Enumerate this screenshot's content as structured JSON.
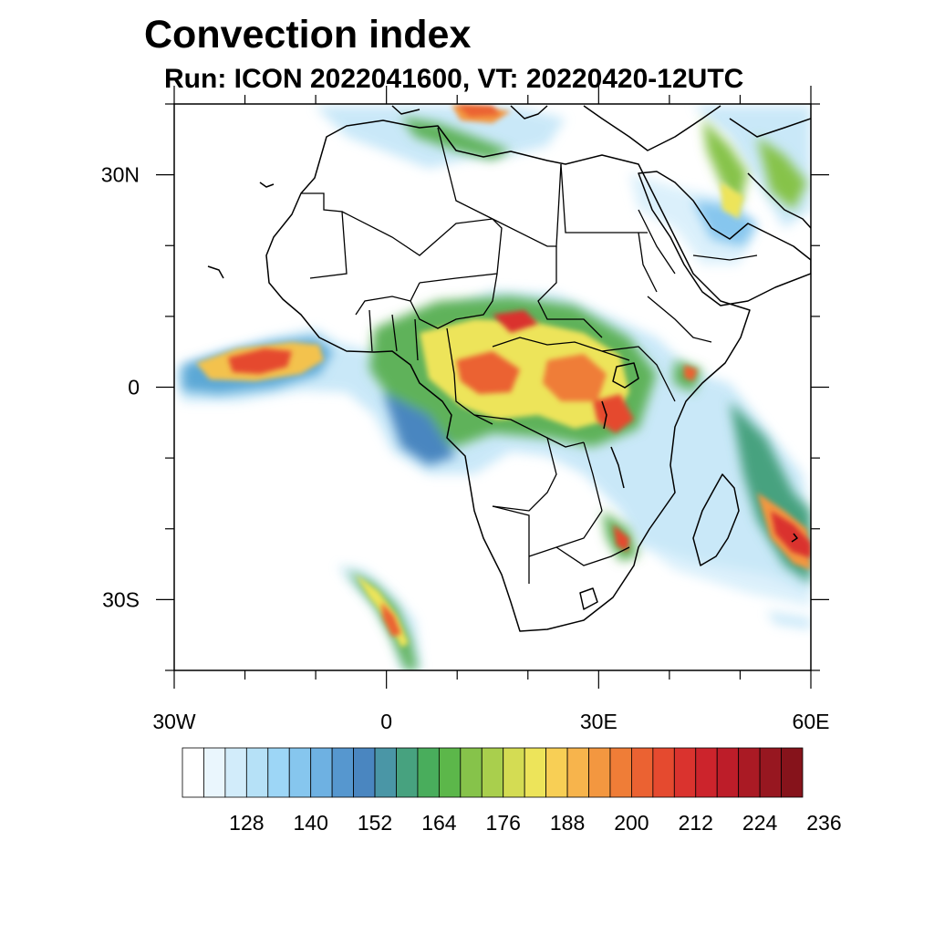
{
  "figure": {
    "title": "Convection index",
    "subtitle": "Run: ICON 2022041600,  VT: 20220420-12UTC"
  },
  "map": {
    "lon_range": [
      -30,
      60
    ],
    "lat_range": [
      -40,
      40
    ],
    "lat_ticks": [
      {
        "value": 30,
        "label": "30N"
      },
      {
        "value": 0,
        "label": "0"
      },
      {
        "value": -30,
        "label": "30S"
      }
    ],
    "lon_ticks": [
      {
        "value": -30,
        "label": "30W"
      },
      {
        "value": 0,
        "label": "0"
      },
      {
        "value": 30,
        "label": "30E"
      },
      {
        "value": 60,
        "label": "60E"
      }
    ],
    "minor_tick_step_deg": 10
  },
  "colorbar": {
    "labels": [
      "128",
      "140",
      "152",
      "164",
      "176",
      "188",
      "200",
      "212",
      "224",
      "236"
    ],
    "colors": [
      "#ffffff",
      "#eaf6fd",
      "#d2ecfa",
      "#b6e1f7",
      "#9dd6f6",
      "#86c6ee",
      "#6eb1e2",
      "#5697cf",
      "#4a86c0",
      "#4a96a6",
      "#47a27f",
      "#49ad5c",
      "#5cb74a",
      "#86c34a",
      "#a9cf4d",
      "#d4dc53",
      "#ede45a",
      "#f8cf55",
      "#f7b44c",
      "#f39740",
      "#ef7d37",
      "#eb6232",
      "#e54a2f",
      "#da332e",
      "#cc242c",
      "#bd1d29",
      "#aa1a24",
      "#971720",
      "#86131b"
    ]
  },
  "colors": {
    "land_outline": "#000000",
    "frame": "#000000"
  }
}
